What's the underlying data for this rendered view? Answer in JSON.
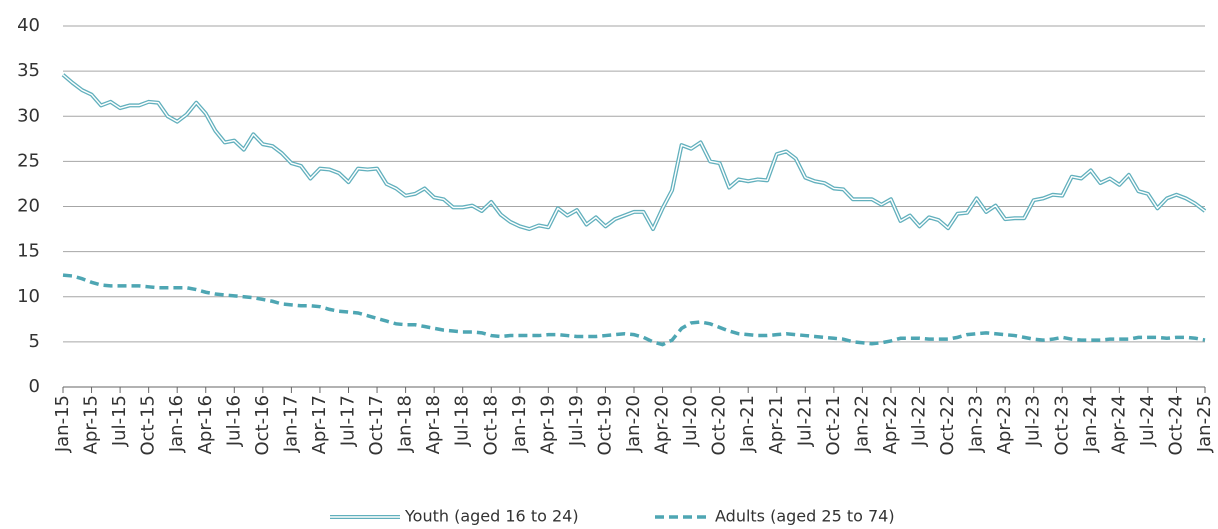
{
  "chart_data": {
    "type": "line",
    "categories": [
      "Jan-15",
      null,
      null,
      "Apr-15",
      null,
      null,
      "Jul-15",
      null,
      null,
      "Oct-15",
      null,
      null,
      "Jan-16",
      null,
      null,
      "Apr-16",
      null,
      null,
      "Jul-16",
      null,
      null,
      "Oct-16",
      null,
      null,
      "Jan-17",
      null,
      null,
      "Apr-17",
      null,
      null,
      "Jul-17",
      null,
      null,
      "Oct-17",
      null,
      null,
      "Jan-18",
      null,
      null,
      "Apr-18",
      null,
      null,
      "Jul-18",
      null,
      null,
      "Oct-18",
      null,
      null,
      "Jan-19",
      null,
      null,
      "Apr-19",
      null,
      null,
      "Jul-19",
      null,
      null,
      "Oct-19",
      null,
      null,
      "Jan-20",
      null,
      null,
      "Apr-20",
      null,
      null,
      "Jul-20",
      null,
      null,
      "Oct-20",
      null,
      null,
      "Jan-21",
      null,
      null,
      "Apr-21",
      null,
      null,
      "Jul-21",
      null,
      null,
      "Oct-21",
      null,
      null,
      "Jan-22",
      null,
      null,
      "Apr-22",
      null,
      null,
      "Jul-22",
      null,
      null,
      "Oct-22",
      null,
      null,
      "Jan-23",
      null,
      null,
      "Apr-23",
      null,
      null,
      "Jul-23",
      null,
      null,
      "Oct-23",
      null,
      null,
      "Jan-24",
      null,
      null,
      "Apr-24",
      null,
      null,
      "Jul-24",
      null,
      null,
      "Oct-24",
      null,
      null,
      "Jan-25"
    ],
    "series": [
      {
        "name": "Youth (aged 16 to 24)",
        "color": "#62b0bd",
        "style": "double",
        "values": [
          34.6,
          33.7,
          32.9,
          32.4,
          31.2,
          31.6,
          30.9,
          31.2,
          31.2,
          31.6,
          31.5,
          30.0,
          29.4,
          30.2,
          31.5,
          30.3,
          28.4,
          27.1,
          27.3,
          26.3,
          28.0,
          26.9,
          26.7,
          25.9,
          24.8,
          24.5,
          23.1,
          24.2,
          24.1,
          23.7,
          22.7,
          24.2,
          24.1,
          24.2,
          22.5,
          22.0,
          21.2,
          21.4,
          22.0,
          21.0,
          20.8,
          19.9,
          19.9,
          20.1,
          19.5,
          20.5,
          19.1,
          18.3,
          17.8,
          17.5,
          17.9,
          17.7,
          19.8,
          19.0,
          19.6,
          18.0,
          18.8,
          17.8,
          18.6,
          19.0,
          19.4,
          19.4,
          17.5,
          19.8,
          21.8,
          26.8,
          26.4,
          27.1,
          25.0,
          24.8,
          22.1,
          23.0,
          22.8,
          23.0,
          22.9,
          25.8,
          26.1,
          25.3,
          23.2,
          22.8,
          22.6,
          22.0,
          21.9,
          20.8,
          20.8,
          20.8,
          20.2,
          20.8,
          18.4,
          19.0,
          17.8,
          18.8,
          18.5,
          17.6,
          19.2,
          19.3,
          20.9,
          19.4,
          20.1,
          18.6,
          18.7,
          18.7,
          20.7,
          20.9,
          21.3,
          21.2,
          23.3,
          23.1,
          24.0,
          22.6,
          23.1,
          22.4,
          23.5,
          21.7,
          21.4,
          19.8,
          20.9,
          21.3,
          20.9,
          20.3,
          19.5
        ]
      },
      {
        "name": "Adults (aged 25 to 74)",
        "color": "#4ea6b3",
        "style": "dashed",
        "values": [
          12.4,
          12.3,
          12.0,
          11.6,
          11.3,
          11.2,
          11.2,
          11.2,
          11.2,
          11.1,
          11.0,
          11.0,
          11.0,
          11.0,
          10.8,
          10.5,
          10.3,
          10.2,
          10.1,
          10.0,
          9.9,
          9.7,
          9.5,
          9.2,
          9.1,
          9.0,
          9.0,
          8.9,
          8.6,
          8.4,
          8.3,
          8.2,
          7.9,
          7.6,
          7.3,
          7.0,
          6.9,
          6.9,
          6.7,
          6.5,
          6.3,
          6.2,
          6.1,
          6.1,
          6.0,
          5.7,
          5.6,
          5.7,
          5.7,
          5.7,
          5.7,
          5.8,
          5.8,
          5.7,
          5.6,
          5.6,
          5.6,
          5.7,
          5.8,
          5.9,
          5.8,
          5.5,
          5.0,
          4.7,
          5.2,
          6.5,
          7.1,
          7.2,
          7.0,
          6.6,
          6.2,
          5.9,
          5.8,
          5.7,
          5.7,
          5.8,
          5.9,
          5.8,
          5.7,
          5.6,
          5.5,
          5.4,
          5.3,
          5.0,
          4.9,
          4.8,
          4.9,
          5.1,
          5.4,
          5.4,
          5.4,
          5.3,
          5.3,
          5.3,
          5.5,
          5.8,
          5.9,
          6.0,
          5.9,
          5.8,
          5.7,
          5.5,
          5.3,
          5.2,
          5.3,
          5.5,
          5.3,
          5.2,
          5.2,
          5.2,
          5.3,
          5.3,
          5.3,
          5.5,
          5.5,
          5.5,
          5.4,
          5.5,
          5.5,
          5.4,
          5.2
        ]
      }
    ],
    "ylim": [
      0,
      40
    ],
    "yticks": [
      0,
      5,
      10,
      15,
      20,
      25,
      30,
      35,
      40
    ],
    "grid": true,
    "legend": "bottom"
  }
}
